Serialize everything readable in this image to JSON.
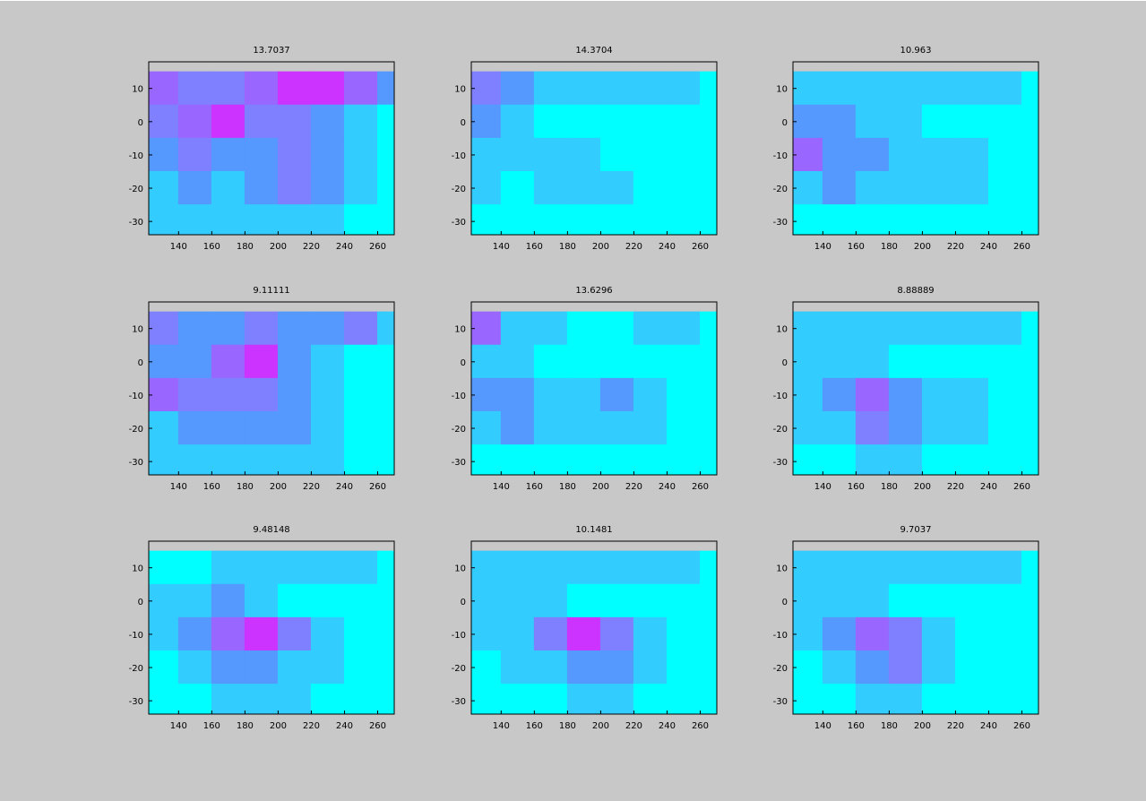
{
  "chart_data": [
    {
      "type": "contour",
      "title": "13.7037",
      "x": [
        130,
        150,
        170,
        190,
        210,
        230,
        250,
        270
      ],
      "y": [
        10,
        0,
        -10,
        -20,
        -30
      ],
      "z": [
        [
          4,
          3,
          3,
          4,
          5,
          5,
          4,
          2
        ],
        [
          3,
          4,
          5,
          3,
          3,
          2,
          1,
          0
        ],
        [
          2,
          3,
          2,
          2,
          3,
          2,
          1,
          0
        ],
        [
          1,
          2,
          1,
          2,
          3,
          2,
          1,
          0
        ],
        [
          1,
          1,
          1,
          1,
          1,
          1,
          0,
          0
        ]
      ],
      "colors": [
        "#00ffff",
        "#33ccff",
        "#5599ff",
        "#7f80ff",
        "#9966ff",
        "#cc33ff",
        "#ff00ff"
      ],
      "xlim": [
        122,
        270
      ],
      "ylim": [
        -34,
        18
      ],
      "xticks": [
        140,
        160,
        180,
        200,
        220,
        240,
        260
      ],
      "yticks": [
        10,
        0,
        -10,
        -20,
        -30
      ]
    },
    {
      "type": "contour",
      "title": "14.3704",
      "x": [
        130,
        150,
        170,
        190,
        210,
        230,
        250,
        270
      ],
      "y": [
        10,
        0,
        -10,
        -20,
        -30
      ],
      "z": [
        [
          3,
          2,
          1,
          1,
          1,
          1,
          1,
          0
        ],
        [
          2,
          1,
          0,
          0,
          0,
          0,
          0,
          0
        ],
        [
          1,
          1,
          1,
          1,
          0,
          0,
          0,
          0
        ],
        [
          1,
          0,
          1,
          1,
          1,
          0,
          0,
          0
        ],
        [
          0,
          0,
          0,
          0,
          0,
          0,
          0,
          0
        ]
      ],
      "colors": [
        "#00ffff",
        "#33ccff",
        "#5599ff",
        "#7f80ff",
        "#9966ff",
        "#cc33ff",
        "#ff00ff"
      ],
      "xlim": [
        122,
        270
      ],
      "ylim": [
        -34,
        18
      ],
      "xticks": [
        140,
        160,
        180,
        200,
        220,
        240,
        260
      ],
      "yticks": [
        10,
        0,
        -10,
        -20,
        -30
      ]
    },
    {
      "type": "contour",
      "title": "10.963",
      "x": [
        130,
        150,
        170,
        190,
        210,
        230,
        250,
        270
      ],
      "y": [
        10,
        0,
        -10,
        -20,
        -30
      ],
      "z": [
        [
          1,
          1,
          1,
          1,
          1,
          1,
          1,
          0
        ],
        [
          2,
          2,
          1,
          1,
          0,
          0,
          0,
          0
        ],
        [
          4,
          2,
          2,
          1,
          1,
          1,
          0,
          0
        ],
        [
          1,
          2,
          1,
          1,
          1,
          1,
          0,
          0
        ],
        [
          0,
          0,
          0,
          0,
          0,
          0,
          0,
          0
        ]
      ],
      "colors": [
        "#00ffff",
        "#33ccff",
        "#5599ff",
        "#7f80ff",
        "#9966ff",
        "#cc33ff",
        "#ff00ff"
      ],
      "xlim": [
        122,
        270
      ],
      "ylim": [
        -34,
        18
      ],
      "xticks": [
        140,
        160,
        180,
        200,
        220,
        240,
        260
      ],
      "yticks": [
        10,
        0,
        -10,
        -20,
        -30
      ]
    },
    {
      "type": "contour",
      "title": "9.11111",
      "x": [
        130,
        150,
        170,
        190,
        210,
        230,
        250,
        270
      ],
      "y": [
        10,
        0,
        -10,
        -20,
        -30
      ],
      "z": [
        [
          3,
          2,
          2,
          3,
          2,
          2,
          3,
          1
        ],
        [
          2,
          2,
          4,
          5,
          2,
          1,
          0,
          0
        ],
        [
          4,
          3,
          3,
          3,
          2,
          1,
          0,
          0
        ],
        [
          1,
          2,
          2,
          2,
          2,
          1,
          0,
          0
        ],
        [
          1,
          1,
          1,
          1,
          1,
          1,
          0,
          0
        ]
      ],
      "colors": [
        "#00ffff",
        "#33ccff",
        "#5599ff",
        "#7f80ff",
        "#9966ff",
        "#cc33ff",
        "#ff00ff"
      ],
      "xlim": [
        122,
        270
      ],
      "ylim": [
        -34,
        18
      ],
      "xticks": [
        140,
        160,
        180,
        200,
        220,
        240,
        260
      ],
      "yticks": [
        10,
        0,
        -10,
        -20,
        -30
      ]
    },
    {
      "type": "contour",
      "title": "13.6296",
      "x": [
        130,
        150,
        170,
        190,
        210,
        230,
        250,
        270
      ],
      "y": [
        10,
        0,
        -10,
        -20,
        -30
      ],
      "z": [
        [
          4,
          1,
          1,
          0,
          0,
          1,
          1,
          0
        ],
        [
          1,
          1,
          0,
          0,
          0,
          0,
          0,
          0
        ],
        [
          2,
          2,
          1,
          1,
          2,
          1,
          0,
          0
        ],
        [
          1,
          2,
          1,
          1,
          1,
          1,
          0,
          0
        ],
        [
          0,
          0,
          0,
          0,
          0,
          0,
          0,
          0
        ]
      ],
      "colors": [
        "#00ffff",
        "#33ccff",
        "#5599ff",
        "#7f80ff",
        "#9966ff",
        "#cc33ff",
        "#ff00ff"
      ],
      "xlim": [
        122,
        270
      ],
      "ylim": [
        -34,
        18
      ],
      "xticks": [
        140,
        160,
        180,
        200,
        220,
        240,
        260
      ],
      "yticks": [
        10,
        0,
        -10,
        -20,
        -30
      ]
    },
    {
      "type": "contour",
      "title": "8.88889",
      "x": [
        130,
        150,
        170,
        190,
        210,
        230,
        250,
        270
      ],
      "y": [
        10,
        0,
        -10,
        -20,
        -30
      ],
      "z": [
        [
          1,
          1,
          1,
          1,
          1,
          1,
          1,
          0
        ],
        [
          1,
          1,
          1,
          0,
          0,
          0,
          0,
          0
        ],
        [
          1,
          2,
          4,
          2,
          1,
          1,
          0,
          0
        ],
        [
          1,
          1,
          3,
          2,
          1,
          1,
          0,
          0
        ],
        [
          0,
          0,
          1,
          1,
          0,
          0,
          0,
          0
        ]
      ],
      "colors": [
        "#00ffff",
        "#33ccff",
        "#5599ff",
        "#7f80ff",
        "#9966ff",
        "#cc33ff",
        "#ff00ff"
      ],
      "xlim": [
        122,
        270
      ],
      "ylim": [
        -34,
        18
      ],
      "xticks": [
        140,
        160,
        180,
        200,
        220,
        240,
        260
      ],
      "yticks": [
        10,
        0,
        -10,
        -20,
        -30
      ]
    },
    {
      "type": "contour",
      "title": "9.48148",
      "x": [
        130,
        150,
        170,
        190,
        210,
        230,
        250,
        270
      ],
      "y": [
        10,
        0,
        -10,
        -20,
        -30
      ],
      "z": [
        [
          0,
          0,
          1,
          1,
          1,
          1,
          1,
          0
        ],
        [
          1,
          1,
          2,
          1,
          0,
          0,
          0,
          0
        ],
        [
          1,
          2,
          4,
          5,
          3,
          1,
          0,
          0
        ],
        [
          0,
          1,
          2,
          2,
          1,
          1,
          0,
          0
        ],
        [
          0,
          0,
          1,
          1,
          1,
          0,
          0,
          0
        ]
      ],
      "colors": [
        "#00ffff",
        "#33ccff",
        "#5599ff",
        "#7f80ff",
        "#9966ff",
        "#cc33ff",
        "#ff00ff"
      ],
      "xlim": [
        122,
        270
      ],
      "ylim": [
        -34,
        18
      ],
      "xticks": [
        140,
        160,
        180,
        200,
        220,
        240,
        260
      ],
      "yticks": [
        10,
        0,
        -10,
        -20,
        -30
      ]
    },
    {
      "type": "contour",
      "title": "10.1481",
      "x": [
        130,
        150,
        170,
        190,
        210,
        230,
        250,
        270
      ],
      "y": [
        10,
        0,
        -10,
        -20,
        -30
      ],
      "z": [
        [
          1,
          1,
          1,
          1,
          1,
          1,
          1,
          0
        ],
        [
          1,
          1,
          1,
          0,
          0,
          0,
          0,
          0
        ],
        [
          1,
          1,
          3,
          5,
          3,
          1,
          0,
          0
        ],
        [
          0,
          1,
          1,
          2,
          2,
          1,
          0,
          0
        ],
        [
          0,
          0,
          0,
          1,
          1,
          0,
          0,
          0
        ]
      ],
      "colors": [
        "#00ffff",
        "#33ccff",
        "#5599ff",
        "#7f80ff",
        "#9966ff",
        "#cc33ff",
        "#ff00ff"
      ],
      "xlim": [
        122,
        270
      ],
      "ylim": [
        -34,
        18
      ],
      "xticks": [
        140,
        160,
        180,
        200,
        220,
        240,
        260
      ],
      "yticks": [
        10,
        0,
        -10,
        -20,
        -30
      ]
    },
    {
      "type": "contour",
      "title": "9.7037",
      "x": [
        130,
        150,
        170,
        190,
        210,
        230,
        250,
        270
      ],
      "y": [
        10,
        0,
        -10,
        -20,
        -30
      ],
      "z": [
        [
          1,
          1,
          1,
          1,
          1,
          1,
          1,
          0
        ],
        [
          1,
          1,
          1,
          0,
          0,
          0,
          0,
          0
        ],
        [
          1,
          2,
          4,
          3,
          1,
          0,
          0,
          0
        ],
        [
          0,
          1,
          2,
          3,
          1,
          0,
          0,
          0
        ],
        [
          0,
          0,
          1,
          1,
          0,
          0,
          0,
          0
        ]
      ],
      "colors": [
        "#00ffff",
        "#33ccff",
        "#5599ff",
        "#7f80ff",
        "#9966ff",
        "#cc33ff",
        "#ff00ff"
      ],
      "xlim": [
        122,
        270
      ],
      "ylim": [
        -34,
        18
      ],
      "xticks": [
        140,
        160,
        180,
        200,
        220,
        240,
        260
      ],
      "yticks": [
        10,
        0,
        -10,
        -20,
        -30
      ]
    }
  ]
}
